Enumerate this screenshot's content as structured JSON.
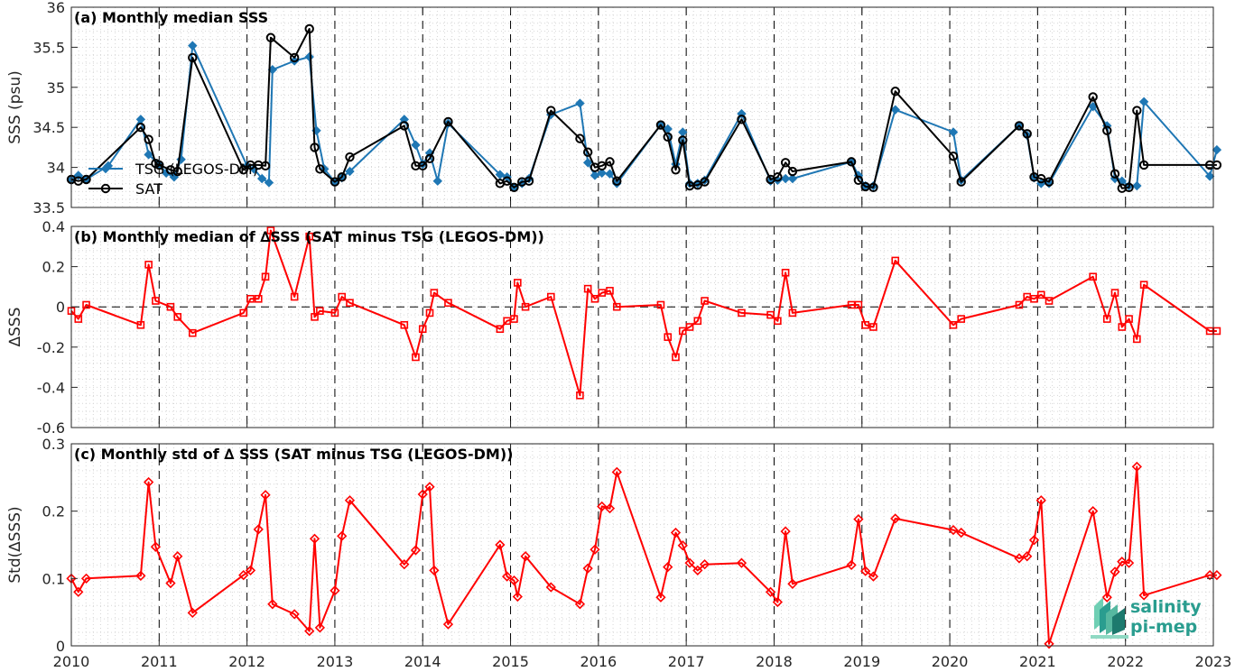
{
  "chart_data": [
    {
      "type": "line",
      "title": "(a) Monthly median SSS",
      "ylabel": "SSS (psu)",
      "xlim": [
        2010,
        2023
      ],
      "ylim": [
        33.5,
        36
      ],
      "yticks": [
        33.5,
        34,
        34.5,
        35,
        35.5,
        36
      ],
      "ytick_labels": [
        "33.5",
        "34",
        "34.5",
        "35",
        "35.5",
        "36"
      ],
      "grid": true,
      "legend_position": "left",
      "series": [
        {
          "name": "TSG (LEGOS-DM)",
          "color": "#1f77b4",
          "marker": "diamond",
          "x": [
            2010.0,
            2010.08,
            2010.17,
            2010.42,
            2010.79,
            2010.88,
            2011.0,
            2011.08,
            2011.17,
            2011.25,
            2011.38,
            2012.0,
            2012.08,
            2012.17,
            2012.25,
            2012.29,
            2012.54,
            2012.71,
            2012.79,
            2012.88,
            2013.0,
            2013.08,
            2013.17,
            2013.79,
            2013.92,
            2014.0,
            2014.08,
            2014.17,
            2014.29,
            2014.88,
            2014.96,
            2015.04,
            2015.13,
            2015.21,
            2015.46,
            2015.79,
            2015.88,
            2015.96,
            2016.04,
            2016.13,
            2016.21,
            2016.71,
            2016.79,
            2016.88,
            2016.96,
            2017.04,
            2017.13,
            2017.21,
            2017.63,
            2017.96,
            2018.04,
            2018.13,
            2018.21,
            2018.88,
            2018.96,
            2019.04,
            2019.13,
            2019.38,
            2020.04,
            2020.13,
            2020.79,
            2020.88,
            2020.96,
            2021.04,
            2021.13,
            2021.63,
            2021.79,
            2021.88,
            2021.96,
            2022.04,
            2022.13,
            2022.21,
            2022.96,
            2023.04
          ],
          "y": [
            33.84,
            33.9,
            33.85,
            34.02,
            34.6,
            34.16,
            34.04,
            33.93,
            33.88,
            34.1,
            35.52,
            34.02,
            33.98,
            33.86,
            33.81,
            35.22,
            35.33,
            35.38,
            34.46,
            33.98,
            33.82,
            33.87,
            33.95,
            34.6,
            34.28,
            34.04,
            34.18,
            33.83,
            34.55,
            33.91,
            33.88,
            33.75,
            33.8,
            33.86,
            34.66,
            34.8,
            34.06,
            33.9,
            33.93,
            33.92,
            33.8,
            34.53,
            34.48,
            34.04,
            34.44,
            33.8,
            33.8,
            33.84,
            34.67,
            33.83,
            33.84,
            33.86,
            33.86,
            34.07,
            33.9,
            33.77,
            33.77,
            34.72,
            34.44,
            33.84,
            34.52,
            34.4,
            33.87,
            33.8,
            33.8,
            34.76,
            34.52,
            33.86,
            33.83,
            33.77,
            33.77,
            34.82,
            33.89,
            34.22
          ]
        },
        {
          "name": "SAT",
          "color": "#000000",
          "marker": "circle",
          "x": [
            2010.0,
            2010.08,
            2010.17,
            2010.79,
            2010.88,
            2010.96,
            2011.0,
            2011.13,
            2011.21,
            2011.38,
            2011.96,
            2012.04,
            2012.13,
            2012.21,
            2012.27,
            2012.54,
            2012.71,
            2012.77,
            2012.83,
            2013.0,
            2013.08,
            2013.17,
            2013.79,
            2013.92,
            2014.0,
            2014.08,
            2014.29,
            2014.88,
            2014.96,
            2015.04,
            2015.13,
            2015.21,
            2015.46,
            2015.79,
            2015.88,
            2015.96,
            2016.04,
            2016.13,
            2016.21,
            2016.71,
            2016.79,
            2016.88,
            2016.96,
            2017.04,
            2017.13,
            2017.21,
            2017.63,
            2017.96,
            2018.04,
            2018.13,
            2018.21,
            2018.88,
            2018.96,
            2019.04,
            2019.13,
            2019.38,
            2020.04,
            2020.13,
            2020.79,
            2020.88,
            2020.96,
            2021.04,
            2021.13,
            2021.63,
            2021.79,
            2021.88,
            2021.96,
            2022.04,
            2022.13,
            2022.21,
            2022.96,
            2023.04
          ],
          "y": [
            33.85,
            33.83,
            33.85,
            34.5,
            34.35,
            34.05,
            34.03,
            33.97,
            33.95,
            35.37,
            33.97,
            34.03,
            34.03,
            34.02,
            35.62,
            35.37,
            35.73,
            34.25,
            33.98,
            33.82,
            33.88,
            34.13,
            34.52,
            34.02,
            34.02,
            34.11,
            34.57,
            33.8,
            33.83,
            33.75,
            33.82,
            33.83,
            34.71,
            34.36,
            34.19,
            34.0,
            34.02,
            34.07,
            33.83,
            34.53,
            34.38,
            33.97,
            34.34,
            33.77,
            33.78,
            33.82,
            34.6,
            33.85,
            33.88,
            34.06,
            33.95,
            34.07,
            33.84,
            33.76,
            33.75,
            34.95,
            34.14,
            33.82,
            34.52,
            34.42,
            33.88,
            33.86,
            33.82,
            34.88,
            34.46,
            33.92,
            33.74,
            33.75,
            34.71,
            34.03,
            34.03,
            34.03
          ]
        }
      ]
    },
    {
      "type": "line",
      "title": "(b) Monthly median of ∆SSS (SAT minus TSG (LEGOS-DM))",
      "ylabel": "∆SSS",
      "xlim": [
        2010,
        2023
      ],
      "ylim": [
        -0.6,
        0.4
      ],
      "yticks": [
        -0.6,
        -0.4,
        -0.2,
        0,
        0.2,
        0.4
      ],
      "ytick_labels": [
        "-0.6",
        "-0.4",
        "-0.2",
        "0",
        "0.2",
        "0.4"
      ],
      "grid": true,
      "reference_line": 0,
      "series": [
        {
          "name": "",
          "color": "#ff0000",
          "marker": "square",
          "x": [
            2010.0,
            2010.08,
            2010.17,
            2010.79,
            2010.88,
            2010.96,
            2011.13,
            2011.21,
            2011.38,
            2011.96,
            2012.04,
            2012.13,
            2012.21,
            2012.27,
            2012.54,
            2012.71,
            2012.77,
            2012.83,
            2013.0,
            2013.08,
            2013.17,
            2013.79,
            2013.92,
            2014.0,
            2014.08,
            2014.13,
            2014.29,
            2014.88,
            2014.96,
            2015.04,
            2015.08,
            2015.17,
            2015.46,
            2015.79,
            2015.88,
            2015.96,
            2016.04,
            2016.13,
            2016.21,
            2016.71,
            2016.79,
            2016.88,
            2016.96,
            2017.04,
            2017.13,
            2017.21,
            2017.63,
            2017.96,
            2018.04,
            2018.13,
            2018.21,
            2018.88,
            2018.96,
            2019.04,
            2019.13,
            2019.38,
            2020.04,
            2020.13,
            2020.79,
            2020.88,
            2020.96,
            2021.04,
            2021.13,
            2021.63,
            2021.79,
            2021.88,
            2021.96,
            2022.04,
            2022.13,
            2022.21,
            2022.96,
            2023.04
          ],
          "y": [
            -0.02,
            -0.06,
            0.01,
            -0.09,
            0.21,
            0.03,
            0.0,
            -0.05,
            -0.13,
            -0.03,
            0.04,
            0.04,
            0.15,
            0.38,
            0.05,
            0.35,
            -0.05,
            -0.02,
            -0.03,
            0.05,
            0.02,
            -0.09,
            -0.25,
            -0.11,
            -0.03,
            0.07,
            0.02,
            -0.11,
            -0.07,
            -0.06,
            0.12,
            0.0,
            0.05,
            -0.44,
            0.09,
            0.04,
            0.07,
            0.08,
            0.0,
            0.01,
            -0.15,
            -0.25,
            -0.12,
            -0.1,
            -0.07,
            0.03,
            -0.03,
            -0.04,
            -0.07,
            0.17,
            -0.03,
            0.01,
            0.01,
            -0.09,
            -0.1,
            0.23,
            -0.09,
            -0.06,
            0.01,
            0.05,
            0.04,
            0.06,
            0.03,
            0.15,
            -0.06,
            0.07,
            -0.1,
            -0.06,
            -0.16,
            0.11,
            -0.12,
            -0.12
          ]
        }
      ]
    },
    {
      "type": "line",
      "title": "(c) Monthly std of ∆ SSS (SAT minus TSG (LEGOS-DM))",
      "ylabel": "Std(∆SSS)",
      "xlim": [
        2010,
        2023
      ],
      "ylim": [
        0,
        0.3
      ],
      "yticks": [
        0,
        0.1,
        0.2,
        0.3
      ],
      "ytick_labels": [
        "0",
        "0.1",
        "0.2",
        "0.3"
      ],
      "xticks": [
        2010,
        2011,
        2012,
        2013,
        2014,
        2015,
        2016,
        2017,
        2018,
        2019,
        2020,
        2021,
        2022,
        2023
      ],
      "xtick_labels": [
        "2010",
        "2011",
        "2012",
        "2013",
        "2014",
        "2015",
        "2016",
        "2017",
        "2018",
        "2019",
        "2020",
        "2021",
        "2022",
        "2023"
      ],
      "grid": true,
      "series": [
        {
          "name": "",
          "color": "#ff0000",
          "marker": "diamond",
          "x": [
            2010.0,
            2010.08,
            2010.17,
            2010.79,
            2010.88,
            2010.96,
            2011.13,
            2011.21,
            2011.38,
            2011.96,
            2012.04,
            2012.13,
            2012.21,
            2012.29,
            2012.54,
            2012.71,
            2012.77,
            2012.83,
            2013.0,
            2013.08,
            2013.17,
            2013.79,
            2013.92,
            2014.0,
            2014.08,
            2014.13,
            2014.29,
            2014.88,
            2014.96,
            2015.04,
            2015.08,
            2015.17,
            2015.46,
            2015.79,
            2015.88,
            2015.96,
            2016.04,
            2016.13,
            2016.21,
            2016.71,
            2016.79,
            2016.88,
            2016.96,
            2017.04,
            2017.13,
            2017.21,
            2017.63,
            2017.96,
            2018.04,
            2018.13,
            2018.21,
            2018.88,
            2018.96,
            2019.04,
            2019.13,
            2019.38,
            2020.04,
            2020.13,
            2020.79,
            2020.88,
            2020.96,
            2021.04,
            2021.13,
            2021.63,
            2021.79,
            2021.88,
            2021.96,
            2022.04,
            2022.13,
            2022.21,
            2022.96,
            2023.04
          ],
          "y": [
            0.1,
            0.08,
            0.1,
            0.104,
            0.243,
            0.147,
            0.093,
            0.133,
            0.049,
            0.105,
            0.112,
            0.173,
            0.224,
            0.062,
            0.047,
            0.022,
            0.159,
            0.027,
            0.082,
            0.163,
            0.216,
            0.121,
            0.142,
            0.225,
            0.236,
            0.112,
            0.032,
            0.15,
            0.103,
            0.097,
            0.073,
            0.133,
            0.087,
            0.062,
            0.115,
            0.143,
            0.207,
            0.204,
            0.258,
            0.072,
            0.117,
            0.168,
            0.149,
            0.123,
            0.112,
            0.121,
            0.123,
            0.08,
            0.065,
            0.17,
            0.092,
            0.12,
            0.188,
            0.111,
            0.103,
            0.189,
            0.172,
            0.168,
            0.13,
            0.133,
            0.157,
            0.216,
            0.003,
            0.2,
            0.072,
            0.11,
            0.125,
            0.123,
            0.266,
            0.075,
            0.105,
            0.105
          ]
        }
      ]
    }
  ],
  "logo": {
    "icon": "pi-mep-logo-icon",
    "line1": "salinity",
    "line2": "pi-mep",
    "color": "#2a9d8f"
  }
}
